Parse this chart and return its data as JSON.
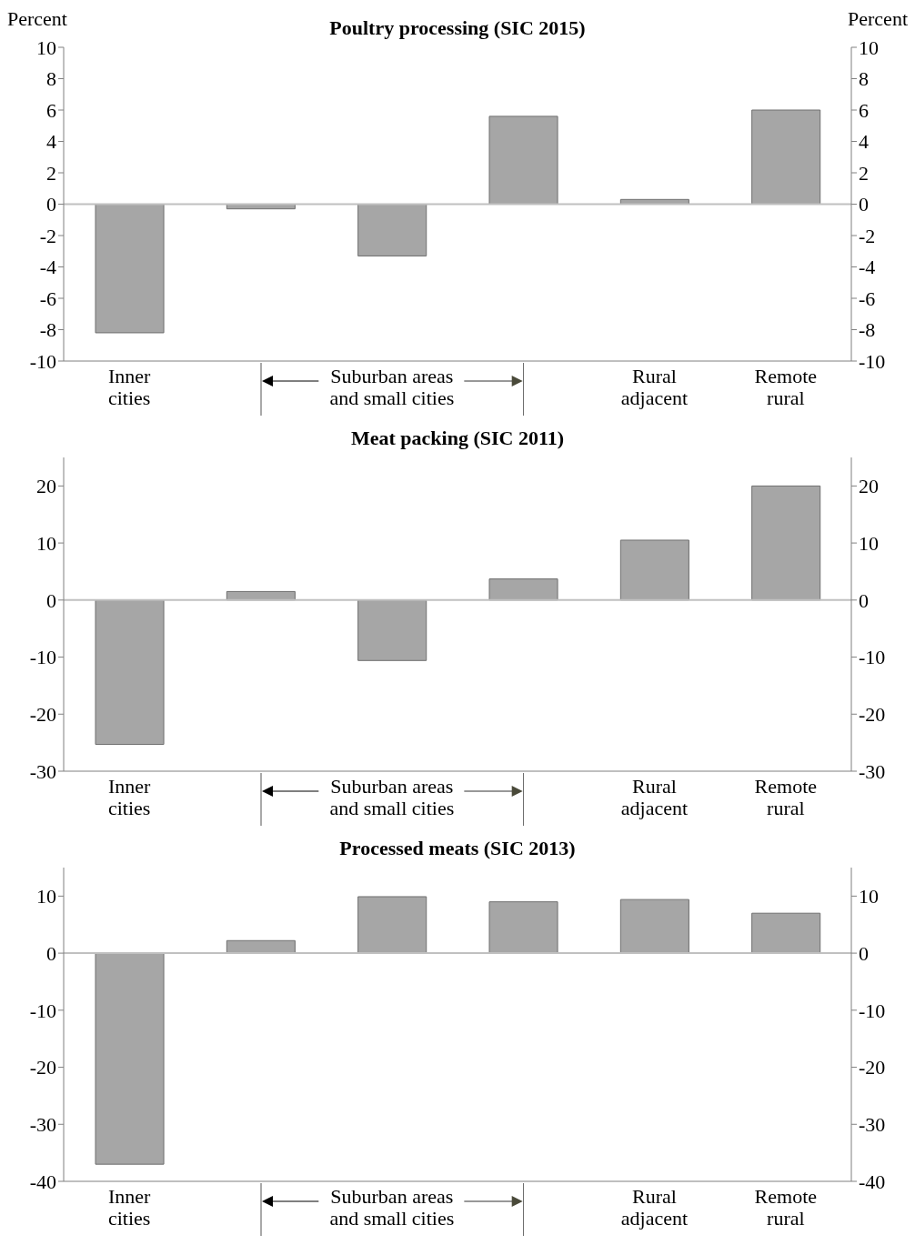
{
  "chart_data": [
    {
      "type": "bar",
      "title": "Poultry processing (SIC 2015)",
      "ylabel": "Percent",
      "y2label": "Percent",
      "categories": [
        "Inner cities",
        null,
        "Suburban areas and small cities",
        null,
        "Rural adjacent",
        "Remote rural"
      ],
      "values": [
        -8.2,
        -0.3,
        -3.3,
        5.6,
        0.3,
        6.0
      ],
      "color": "#a6a6a6",
      "ylim": [
        -10,
        10
      ],
      "yticks": [
        -10,
        -8,
        -6,
        -4,
        -2,
        0,
        2,
        4,
        6,
        8,
        10
      ],
      "y2lim": [
        -10,
        10
      ],
      "y2ticks": [
        -10,
        -8,
        -6,
        -4,
        -2,
        0,
        2,
        4,
        6,
        8,
        10
      ],
      "ref_lines": [
        {
          "axis": "y",
          "value": 0,
          "color": "#c0c0c0"
        }
      ],
      "legend": false,
      "grid": false
    },
    {
      "type": "bar",
      "title": "Meat packing (SIC 2011)",
      "categories": [
        "Inner cities",
        null,
        "Suburban areas and small cities",
        null,
        "Rural adjacent",
        "Remote rural"
      ],
      "values": [
        -25.3,
        1.5,
        -10.6,
        3.7,
        10.5,
        20.0
      ],
      "color": "#a6a6a6",
      "ylim": [
        -30,
        25
      ],
      "yticks": [
        -30,
        -20,
        -10,
        0,
        10,
        20
      ],
      "y2lim": [
        -30,
        25
      ],
      "y2ticks": [
        -30,
        -20,
        -10,
        0,
        10,
        20
      ],
      "ref_lines": [
        {
          "axis": "y",
          "value": 0,
          "color": "#c0c0c0"
        }
      ],
      "legend": false,
      "grid": false
    },
    {
      "type": "bar",
      "title": "Processed meats (SIC 2013)",
      "categories": [
        "Inner cities",
        null,
        "Suburban areas and small cities",
        null,
        "Rural adjacent",
        "Remote rural"
      ],
      "values": [
        -37.0,
        2.2,
        9.9,
        9.0,
        9.4,
        7.0
      ],
      "color": "#a6a6a6",
      "ylim": [
        -40,
        15
      ],
      "yticks": [
        -40,
        -30,
        -20,
        -10,
        0,
        10
      ],
      "y2lim": [
        -40,
        15
      ],
      "y2ticks": [
        -40,
        -30,
        -20,
        -10,
        0,
        10
      ],
      "ref_lines": [
        {
          "axis": "y",
          "value": 0,
          "color": "#c0c0c0"
        }
      ],
      "legend": false,
      "grid": false
    }
  ]
}
